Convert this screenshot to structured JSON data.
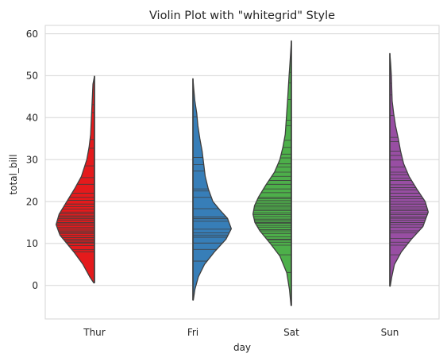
{
  "chart_data": {
    "type": "violin",
    "title": "Violin Plot with \"whitegrid\" Style",
    "xlabel": "day",
    "ylabel": "total_bill",
    "categories": [
      "Thur",
      "Fri",
      "Sat",
      "Sun"
    ],
    "ylim": [
      -8,
      62
    ],
    "yticks": [
      0,
      10,
      20,
      30,
      40,
      50,
      60
    ],
    "grid": true,
    "inner": "stick",
    "colors": [
      "#e41a1c",
      "#377eb8",
      "#4daf4a",
      "#984ea3"
    ],
    "violins": [
      {
        "category": "Thur",
        "side": "left",
        "range": [
          0.6,
          49.9
        ],
        "peak_value": 14.5,
        "density_profile": [
          [
            0.6,
            0.02
          ],
          [
            2,
            0.12
          ],
          [
            5,
            0.3
          ],
          [
            8,
            0.54
          ],
          [
            10,
            0.72
          ],
          [
            12,
            0.9
          ],
          [
            14.5,
            1.0
          ],
          [
            17,
            0.92
          ],
          [
            20,
            0.72
          ],
          [
            23,
            0.52
          ],
          [
            26,
            0.34
          ],
          [
            30,
            0.2
          ],
          [
            33,
            0.14
          ],
          [
            36,
            0.1
          ],
          [
            40,
            0.08
          ],
          [
            44,
            0.06
          ],
          [
            48,
            0.04
          ],
          [
            49.9,
            0.0
          ]
        ],
        "sticks": [
          8.0,
          8.5,
          9.5,
          10.1,
          10.3,
          10.6,
          11.0,
          11.4,
          11.9,
          12.4,
          12.7,
          13.0,
          13.4,
          13.8,
          14.3,
          14.7,
          15.0,
          15.5,
          15.9,
          16.3,
          16.6,
          17.1,
          17.5,
          18.2,
          18.8,
          19.4,
          20.3,
          21.0,
          22.0,
          24.1,
          25.7,
          28.5,
          32.7,
          34.8,
          41.2,
          43.1
        ]
      },
      {
        "category": "Fri",
        "side": "right",
        "range": [
          -3.5,
          49.3
        ],
        "peak_value": 13.5,
        "density_profile": [
          [
            -3.5,
            0.01
          ],
          [
            -1,
            0.05
          ],
          [
            2,
            0.14
          ],
          [
            5,
            0.3
          ],
          [
            8,
            0.56
          ],
          [
            11,
            0.86
          ],
          [
            13.5,
            1.0
          ],
          [
            16,
            0.9
          ],
          [
            18,
            0.7
          ],
          [
            20,
            0.52
          ],
          [
            23,
            0.4
          ],
          [
            26,
            0.32
          ],
          [
            29,
            0.28
          ],
          [
            32,
            0.24
          ],
          [
            35,
            0.18
          ],
          [
            38,
            0.13
          ],
          [
            41,
            0.1
          ],
          [
            44,
            0.05
          ],
          [
            47,
            0.02
          ],
          [
            49.3,
            0.0
          ]
        ],
        "sticks": [
          5.8,
          8.6,
          10.1,
          11.5,
          12.0,
          12.5,
          13.4,
          15.3,
          15.9,
          16.3,
          18.3,
          21.0,
          22.5,
          23.0,
          27.3,
          28.8,
          30.5,
          40.2
        ]
      },
      {
        "category": "Sat",
        "side": "left",
        "range": [
          -4.8,
          58.3
        ],
        "peak_value": 17.0,
        "density_profile": [
          [
            -4.8,
            0.01
          ],
          [
            -1,
            0.05
          ],
          [
            3,
            0.12
          ],
          [
            7,
            0.3
          ],
          [
            10,
            0.55
          ],
          [
            13,
            0.82
          ],
          [
            15,
            0.95
          ],
          [
            17,
            1.0
          ],
          [
            19,
            0.96
          ],
          [
            21,
            0.86
          ],
          [
            24,
            0.66
          ],
          [
            27,
            0.44
          ],
          [
            30,
            0.3
          ],
          [
            33,
            0.22
          ],
          [
            36,
            0.16
          ],
          [
            40,
            0.13
          ],
          [
            44,
            0.1
          ],
          [
            47,
            0.08
          ],
          [
            50,
            0.06
          ],
          [
            54,
            0.03
          ],
          [
            58.3,
            0.0
          ]
        ],
        "sticks": [
          3.1,
          7.3,
          9.6,
          10.3,
          10.8,
          11.0,
          11.6,
          12.4,
          13.0,
          13.3,
          13.9,
          14.3,
          14.8,
          15.0,
          15.4,
          15.8,
          16.4,
          16.9,
          17.3,
          17.8,
          18.2,
          18.7,
          19.1,
          19.6,
          20.2,
          20.7,
          21.0,
          22.1,
          23.0,
          24.1,
          25.0,
          26.0,
          27.0,
          28.2,
          29.0,
          30.4,
          31.3,
          32.9,
          34.6,
          38.1,
          39.4,
          44.3,
          48.3,
          50.8
        ]
      },
      {
        "category": "Sun",
        "side": "right",
        "range": [
          -0.2,
          55.3
        ],
        "peak_value": 17.5,
        "density_profile": [
          [
            -0.2,
            0.01
          ],
          [
            2,
            0.05
          ],
          [
            5,
            0.12
          ],
          [
            8,
            0.3
          ],
          [
            11,
            0.56
          ],
          [
            14,
            0.86
          ],
          [
            17.5,
            1.0
          ],
          [
            20,
            0.92
          ],
          [
            23,
            0.7
          ],
          [
            26,
            0.5
          ],
          [
            29,
            0.36
          ],
          [
            32,
            0.28
          ],
          [
            35,
            0.22
          ],
          [
            38,
            0.15
          ],
          [
            41,
            0.1
          ],
          [
            44,
            0.06
          ],
          [
            47,
            0.05
          ],
          [
            50,
            0.04
          ],
          [
            53,
            0.02
          ],
          [
            55.3,
            0.0
          ]
        ],
        "sticks": [
          7.3,
          9.6,
          10.3,
          11.2,
          12.5,
          13.0,
          13.9,
          14.5,
          15.0,
          15.5,
          16.0,
          16.3,
          16.9,
          17.3,
          17.8,
          18.2,
          18.7,
          19.4,
          20.0,
          20.7,
          21.2,
          22.0,
          22.8,
          23.3,
          24.0,
          25.0,
          25.6,
          26.4,
          27.0,
          28.2,
          29.9,
          31.0,
          32.0,
          34.3,
          35.3,
          40.5,
          45.4,
          48.2
        ]
      }
    ]
  }
}
